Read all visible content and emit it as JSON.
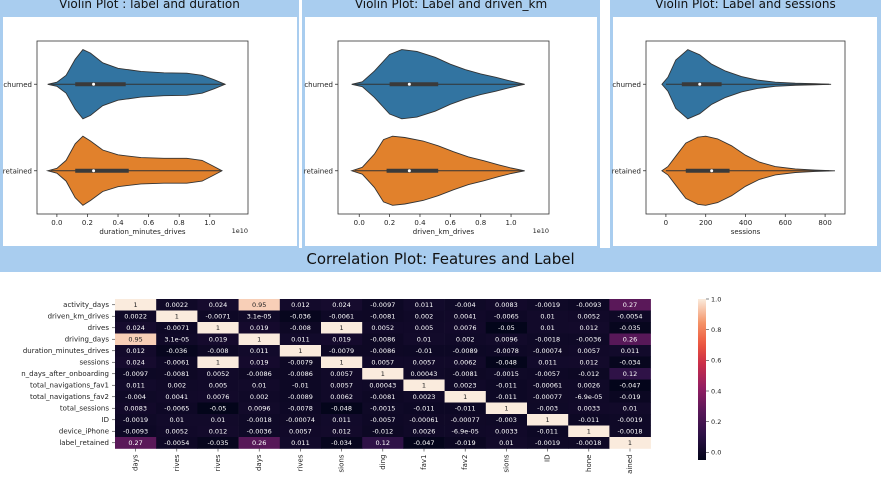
{
  "violins": [
    {
      "title": "Violin Plot : label and duration",
      "xlabel": "duration_minutes_drives",
      "offset_text": "1e10",
      "xlim": [
        -0.13,
        1.25
      ],
      "xticks": [
        0.0,
        0.2,
        0.4,
        0.6,
        0.8,
        1.0
      ],
      "tick_labels": [
        "0.0",
        "0.2",
        "0.4",
        "0.6",
        "0.8",
        "1.0"
      ],
      "categories": [
        "churned",
        "retained"
      ],
      "colors": [
        "#3274a1",
        "#e1812c"
      ],
      "series": [
        {
          "min": -0.04,
          "max": 1.1,
          "peak": 0.17,
          "q1": 0.12,
          "median": 0.24,
          "q3": 0.45,
          "shape": [
            [
              -0.06,
              0.0
            ],
            [
              0.0,
              0.06
            ],
            [
              0.06,
              0.26
            ],
            [
              0.12,
              0.72
            ],
            [
              0.17,
              1.0
            ],
            [
              0.22,
              0.9
            ],
            [
              0.3,
              0.62
            ],
            [
              0.4,
              0.46
            ],
            [
              0.55,
              0.37
            ],
            [
              0.7,
              0.33
            ],
            [
              0.85,
              0.32
            ],
            [
              0.95,
              0.26
            ],
            [
              1.03,
              0.13
            ],
            [
              1.1,
              0.0
            ]
          ]
        },
        {
          "min": -0.04,
          "max": 1.07,
          "peak": 0.17,
          "q1": 0.12,
          "median": 0.24,
          "q3": 0.47,
          "shape": [
            [
              -0.06,
              0.0
            ],
            [
              0.0,
              0.07
            ],
            [
              0.06,
              0.3
            ],
            [
              0.12,
              0.78
            ],
            [
              0.17,
              1.0
            ],
            [
              0.22,
              0.86
            ],
            [
              0.3,
              0.6
            ],
            [
              0.4,
              0.46
            ],
            [
              0.55,
              0.38
            ],
            [
              0.7,
              0.36
            ],
            [
              0.85,
              0.36
            ],
            [
              0.95,
              0.3
            ],
            [
              1.02,
              0.14
            ],
            [
              1.08,
              0.0
            ]
          ]
        }
      ]
    },
    {
      "title": "Violin Plot: Label and driven_km",
      "xlabel": "driven_km_drives",
      "offset_text": "1e10",
      "xlim": [
        -0.14,
        1.25
      ],
      "xticks": [
        0.0,
        0.2,
        0.4,
        0.6,
        0.8,
        1.0
      ],
      "tick_labels": [
        "0.0",
        "0.2",
        "0.4",
        "0.6",
        "0.8",
        "1.0"
      ],
      "categories": [
        "churned",
        "retained"
      ],
      "colors": [
        "#3274a1",
        "#e1812c"
      ],
      "series": [
        {
          "min": -0.03,
          "max": 1.08,
          "peak": 0.28,
          "q1": 0.2,
          "median": 0.33,
          "q3": 0.52,
          "shape": [
            [
              -0.05,
              0.0
            ],
            [
              0.02,
              0.07
            ],
            [
              0.1,
              0.38
            ],
            [
              0.2,
              0.86
            ],
            [
              0.28,
              1.0
            ],
            [
              0.38,
              0.95
            ],
            [
              0.5,
              0.78
            ],
            [
              0.6,
              0.58
            ],
            [
              0.7,
              0.42
            ],
            [
              0.8,
              0.3
            ],
            [
              0.9,
              0.2
            ],
            [
              0.98,
              0.11
            ],
            [
              1.05,
              0.04
            ],
            [
              1.09,
              0.0
            ]
          ]
        },
        {
          "min": -0.03,
          "max": 1.08,
          "peak": 0.22,
          "q1": 0.18,
          "median": 0.33,
          "q3": 0.52,
          "shape": [
            [
              -0.05,
              0.0
            ],
            [
              0.02,
              0.1
            ],
            [
              0.1,
              0.48
            ],
            [
              0.16,
              0.9
            ],
            [
              0.22,
              1.0
            ],
            [
              0.3,
              0.96
            ],
            [
              0.42,
              0.86
            ],
            [
              0.52,
              0.72
            ],
            [
              0.62,
              0.55
            ],
            [
              0.72,
              0.4
            ],
            [
              0.82,
              0.29
            ],
            [
              0.92,
              0.17
            ],
            [
              1.0,
              0.08
            ],
            [
              1.09,
              0.0
            ]
          ]
        }
      ]
    },
    {
      "title": "Violin Plot: Label and sessions",
      "xlabel": "sessions",
      "offset_text": "",
      "xlim": [
        -100,
        900
      ],
      "xticks": [
        0,
        200,
        400,
        600,
        800
      ],
      "tick_labels": [
        "0",
        "200",
        "400",
        "600",
        "800"
      ],
      "categories": [
        "churned",
        "retained"
      ],
      "colors": [
        "#3274a1",
        "#e1812c"
      ],
      "series": [
        {
          "min": 0,
          "max": 820,
          "peak": 110,
          "q1": 80,
          "median": 170,
          "q3": 280,
          "shape": [
            [
              -20,
              0.0
            ],
            [
              10,
              0.2
            ],
            [
              50,
              0.7
            ],
            [
              110,
              1.0
            ],
            [
              170,
              0.85
            ],
            [
              230,
              0.58
            ],
            [
              300,
              0.38
            ],
            [
              380,
              0.22
            ],
            [
              460,
              0.12
            ],
            [
              550,
              0.06
            ],
            [
              650,
              0.03
            ],
            [
              750,
              0.015
            ],
            [
              830,
              0.0
            ]
          ]
        },
        {
          "min": 0,
          "max": 820,
          "peak": 200,
          "q1": 100,
          "median": 230,
          "q3": 320,
          "shape": [
            [
              -20,
              0.0
            ],
            [
              10,
              0.12
            ],
            [
              50,
              0.42
            ],
            [
              100,
              0.8
            ],
            [
              160,
              0.97
            ],
            [
              200,
              1.0
            ],
            [
              260,
              0.92
            ],
            [
              330,
              0.72
            ],
            [
              400,
              0.45
            ],
            [
              470,
              0.25
            ],
            [
              550,
              0.12
            ],
            [
              650,
              0.05
            ],
            [
              750,
              0.02
            ],
            [
              850,
              0.0
            ]
          ]
        }
      ]
    }
  ],
  "correlation": {
    "title": "Correlation Plot: Features and Label",
    "labels": [
      "activity_days",
      "driven_km_drives",
      "drives",
      "driving_days",
      "duration_minutes_drives",
      "sessions",
      "n_days_after_onboarding",
      "total_navigations_fav1",
      "total_navigations_fav2",
      "total_sessions",
      "ID",
      "device_iPhone",
      "label_retained"
    ],
    "xtick_labels": [
      "days",
      "rives",
      "rives",
      "days",
      "rives",
      "sions",
      "ding",
      "fav1",
      "fav2",
      "sions",
      "ID",
      "hone",
      "ained"
    ],
    "colorbar": {
      "ticks": [
        0.0,
        0.2,
        0.4,
        0.6,
        0.8,
        1.0
      ],
      "tick_labels": [
        "0.0",
        "0.2",
        "0.4",
        "0.6",
        "0.8",
        "1.0"
      ]
    },
    "matrix": [
      [
        1,
        0.0022,
        0.024,
        0.95,
        0.012,
        0.024,
        -0.0097,
        0.011,
        -0.004,
        0.0083,
        -0.0019,
        -0.0093,
        0.27
      ],
      [
        0.0022,
        1,
        -0.0071,
        3.1e-05,
        -0.036,
        -0.0061,
        -0.0081,
        0.002,
        0.0041,
        -0.0065,
        0.01,
        0.0052,
        -0.0054
      ],
      [
        0.024,
        -0.0071,
        1,
        0.019,
        -0.008,
        1,
        0.0052,
        0.005,
        0.0076,
        -0.05,
        0.01,
        0.012,
        -0.035
      ],
      [
        0.95,
        3.1e-05,
        0.019,
        1,
        0.011,
        0.019,
        -0.0086,
        0.01,
        0.002,
        0.0096,
        -0.0018,
        -0.0036,
        0.26
      ],
      [
        0.012,
        -0.036,
        -0.008,
        0.011,
        1,
        -0.0079,
        -0.0086,
        -0.01,
        -0.0089,
        -0.0078,
        -0.00074,
        0.0057,
        0.011
      ],
      [
        0.024,
        -0.0061,
        1,
        0.019,
        -0.0079,
        1,
        0.0057,
        0.0057,
        0.0062,
        -0.048,
        0.011,
        0.012,
        -0.034
      ],
      [
        -0.0097,
        -0.0081,
        0.0052,
        -0.0086,
        -0.0086,
        0.0057,
        1,
        0.00043,
        -0.0081,
        -0.0015,
        -0.0057,
        -0.012,
        0.12
      ],
      [
        0.011,
        0.002,
        0.005,
        0.01,
        -0.01,
        0.0057,
        0.00043,
        1,
        0.0023,
        -0.011,
        -0.00061,
        0.0026,
        -0.047
      ],
      [
        -0.004,
        0.0041,
        0.0076,
        0.002,
        -0.0089,
        0.0062,
        -0.0081,
        0.0023,
        1,
        -0.011,
        -0.00077,
        -6.9e-05,
        -0.019
      ],
      [
        0.0083,
        -0.0065,
        -0.05,
        0.0096,
        -0.0078,
        -0.048,
        -0.0015,
        -0.011,
        -0.011,
        1,
        -0.003,
        0.0033,
        0.01
      ],
      [
        -0.0019,
        0.01,
        0.01,
        -0.0018,
        -0.00074,
        0.011,
        -0.0057,
        -0.00061,
        -0.00077,
        -0.003,
        1,
        -0.011,
        -0.0019
      ],
      [
        -0.0093,
        0.0052,
        0.012,
        -0.0036,
        0.0057,
        0.012,
        -0.012,
        0.0026,
        -6.9e-05,
        0.0033,
        -0.011,
        1,
        -0.0018
      ],
      [
        0.27,
        -0.0054,
        -0.035,
        0.26,
        0.011,
        -0.034,
        0.12,
        -0.047,
        -0.019,
        0.01,
        -0.0019,
        -0.0018,
        1
      ]
    ],
    "cell_text": [
      [
        "1",
        "0.0022",
        "0.024",
        "0.95",
        "0.012",
        "0.024",
        "-0.0097",
        "0.011",
        "-0.004",
        "0.0083",
        "-0.0019",
        "-0.0093",
        "0.27"
      ],
      [
        "0.0022",
        "1",
        "-0.0071",
        "3.1e-05",
        "-0.036",
        "-0.0061",
        "-0.0081",
        "0.002",
        "0.0041",
        "-0.0065",
        "0.01",
        "0.0052",
        "-0.0054"
      ],
      [
        "0.024",
        "-0.0071",
        "1",
        "0.019",
        "-0.008",
        "1",
        "0.0052",
        "0.005",
        "0.0076",
        "-0.05",
        "0.01",
        "0.012",
        "-0.035"
      ],
      [
        "0.95",
        "3.1e-05",
        "0.019",
        "1",
        "0.011",
        "0.019",
        "-0.0086",
        "0.01",
        "0.002",
        "0.0096",
        "-0.0018",
        "-0.0036",
        "0.26"
      ],
      [
        "0.012",
        "-0.036",
        "-0.008",
        "0.011",
        "1",
        "-0.0079",
        "-0.0086",
        "-0.01",
        "-0.0089",
        "-0.0078",
        "-0.00074",
        "0.0057",
        "0.011"
      ],
      [
        "0.024",
        "-0.0061",
        "1",
        "0.019",
        "-0.0079",
        "1",
        "0.0057",
        "0.0057",
        "0.0062",
        "-0.048",
        "0.011",
        "0.012",
        "-0.034"
      ],
      [
        "-0.0097",
        "-0.0081",
        "0.0052",
        "-0.0086",
        "-0.0086",
        "0.0057",
        "1",
        "0.00043",
        "-0.0081",
        "-0.0015",
        "-0.0057",
        "-0.012",
        "0.12"
      ],
      [
        "0.011",
        "0.002",
        "0.005",
        "0.01",
        "-0.01",
        "0.0057",
        "0.00043",
        "1",
        "0.0023",
        "-0.011",
        "-0.00061",
        "0.0026",
        "-0.047"
      ],
      [
        "-0.004",
        "0.0041",
        "0.0076",
        "0.002",
        "-0.0089",
        "0.0062",
        "-0.0081",
        "0.0023",
        "1",
        "-0.011",
        "-0.00077",
        "-6.9e-05",
        "-0.019"
      ],
      [
        "0.0083",
        "-0.0065",
        "-0.05",
        "0.0096",
        "-0.0078",
        "-0.048",
        "-0.0015",
        "-0.011",
        "-0.011",
        "1",
        "-0.003",
        "0.0033",
        "0.01"
      ],
      [
        "-0.0019",
        "0.01",
        "0.01",
        "-0.0018",
        "-0.00074",
        "0.011",
        "-0.0057",
        "-0.00061",
        "-0.00077",
        "-0.003",
        "1",
        "-0.011",
        "-0.0019"
      ],
      [
        "-0.0093",
        "0.0052",
        "0.012",
        "-0.0036",
        "0.0057",
        "0.012",
        "-0.012",
        "0.0026",
        "-6.9e-05",
        "0.0033",
        "-0.011",
        "1",
        "-0.0018"
      ],
      [
        "0.27",
        "-0.0054",
        "-0.035",
        "0.26",
        "0.011",
        "-0.034",
        "0.12",
        "-0.047",
        "-0.019",
        "0.01",
        "-0.0019",
        "-0.0018",
        "1"
      ]
    ]
  },
  "chart_data": [
    {
      "type": "violin",
      "title": "Violin Plot : label and duration",
      "xlabel": "duration_minutes_drives",
      "categories": [
        "churned",
        "retained"
      ],
      "xlim": [
        -0.13,
        1.25
      ],
      "series": [
        {
          "name": "churned",
          "median": 0.24,
          "q1": 0.12,
          "q3": 0.45
        },
        {
          "name": "retained",
          "median": 0.24,
          "q1": 0.12,
          "q3": 0.47
        }
      ]
    },
    {
      "type": "violin",
      "title": "Violin Plot: Label and driven_km",
      "xlabel": "driven_km_drives",
      "categories": [
        "churned",
        "retained"
      ],
      "xlim": [
        -0.14,
        1.25
      ],
      "series": [
        {
          "name": "churned",
          "median": 0.33,
          "q1": 0.2,
          "q3": 0.52
        },
        {
          "name": "retained",
          "median": 0.33,
          "q1": 0.18,
          "q3": 0.52
        }
      ]
    },
    {
      "type": "violin",
      "title": "Violin Plot: Label and sessions",
      "xlabel": "sessions",
      "categories": [
        "churned",
        "retained"
      ],
      "xlim": [
        -100,
        900
      ],
      "series": [
        {
          "name": "churned",
          "median": 170,
          "q1": 80,
          "q3": 280
        },
        {
          "name": "retained",
          "median": 230,
          "q1": 100,
          "q3": 320
        }
      ]
    },
    {
      "type": "heatmap",
      "title": "Correlation Plot: Features and Label",
      "labels": [
        "activity_days",
        "driven_km_drives",
        "drives",
        "driving_days",
        "duration_minutes_drives",
        "sessions",
        "n_days_after_onboarding",
        "total_navigations_fav1",
        "total_navigations_fav2",
        "total_sessions",
        "ID",
        "device_iPhone",
        "label_retained"
      ],
      "value_range": [
        -0.05,
        1.0
      ]
    }
  ]
}
